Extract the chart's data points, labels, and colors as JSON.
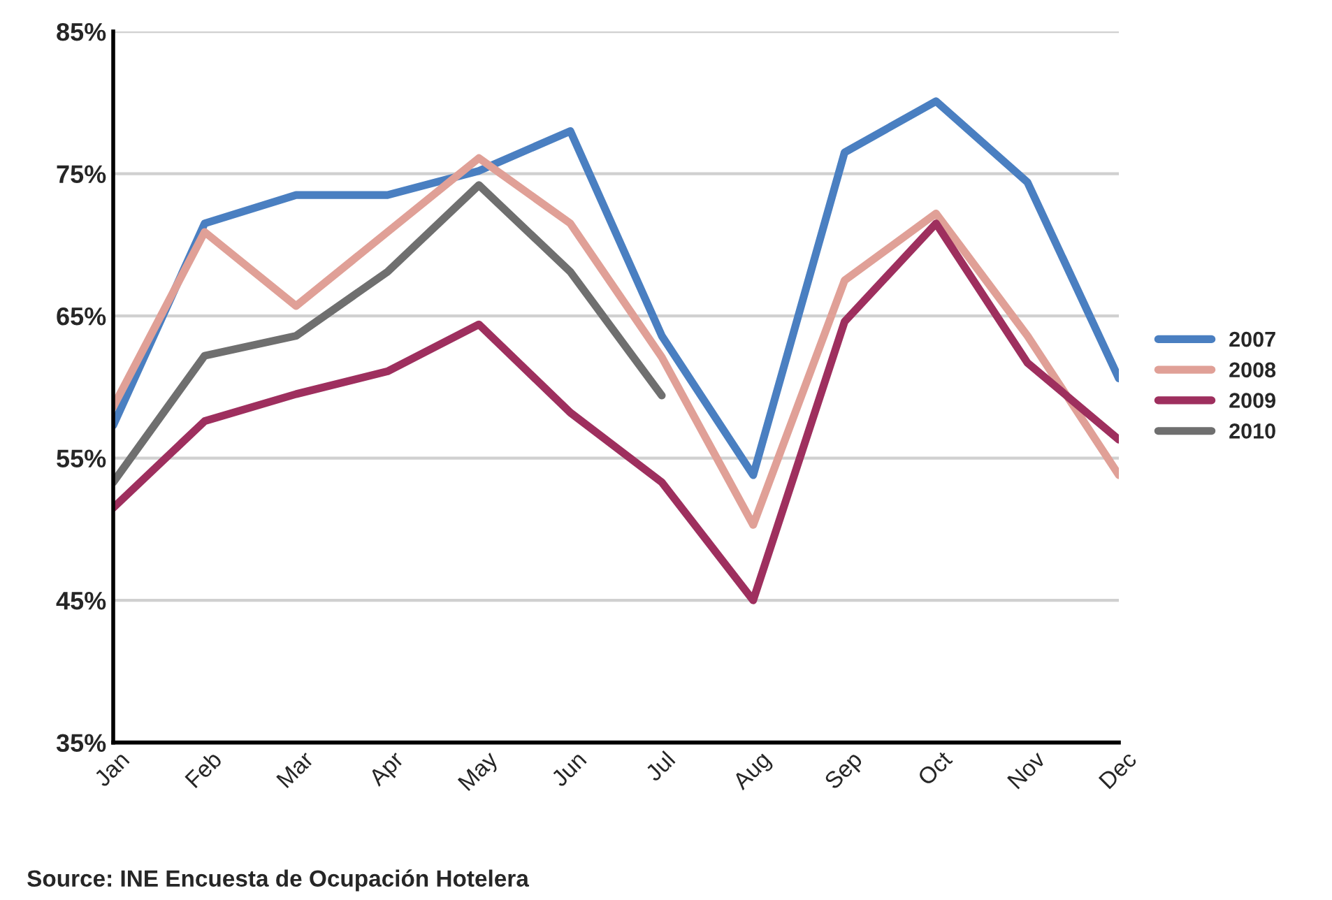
{
  "chart_data": {
    "type": "line",
    "categories": [
      "Jan",
      "Feb",
      "Mar",
      "Apr",
      "May",
      "Jun",
      "Jul",
      "Aug",
      "Sep",
      "Oct",
      "Nov",
      "Dec"
    ],
    "series": [
      {
        "name": "2007",
        "color": "#4a7fc1",
        "values": [
          57.3,
          71.5,
          73.5,
          73.5,
          75.2,
          78.0,
          63.6,
          53.8,
          76.5,
          80.1,
          74.4,
          60.6
        ]
      },
      {
        "name": "2008",
        "color": "#e0a097",
        "values": [
          58.6,
          70.9,
          65.7,
          70.9,
          76.1,
          71.5,
          62.1,
          50.3,
          67.5,
          72.2,
          63.6,
          53.8
        ]
      },
      {
        "name": "2009",
        "color": "#9e2f5e",
        "values": [
          51.5,
          57.6,
          59.5,
          61.1,
          64.4,
          58.2,
          53.3,
          45.0,
          64.6,
          71.5,
          61.7,
          56.3
        ]
      },
      {
        "name": "2010",
        "color": "#6f6f6f",
        "values": [
          53.3,
          62.2,
          63.6,
          68.1,
          74.2,
          68.1,
          59.4,
          null,
          null,
          null,
          null,
          null
        ]
      }
    ],
    "ylim": [
      35,
      85
    ],
    "yticks": [
      {
        "value": 35,
        "label": "35%"
      },
      {
        "value": 45,
        "label": "45%"
      },
      {
        "value": 55,
        "label": "55%"
      },
      {
        "value": 65,
        "label": "65%"
      },
      {
        "value": 75,
        "label": "75%"
      },
      {
        "value": 85,
        "label": "85%"
      }
    ],
    "grid": "y",
    "legend": "right",
    "marker": "none",
    "line_style": "solid",
    "annotations": [
      "Source: INE Encuesta de Ocupación Hotelera"
    ]
  }
}
